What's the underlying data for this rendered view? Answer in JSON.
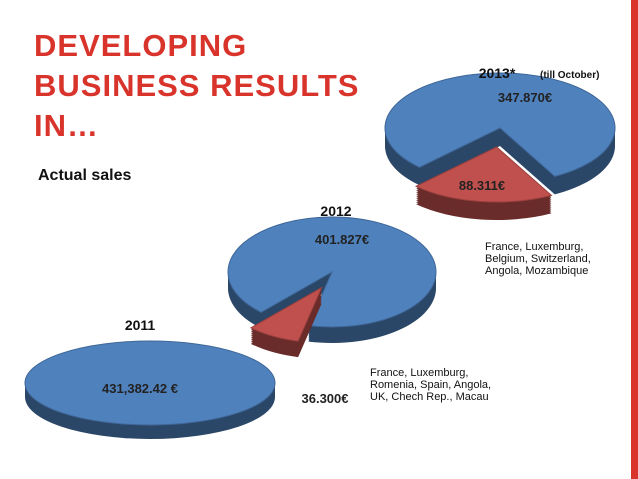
{
  "slide": {
    "title_lines": [
      "DEVELOPING",
      "BUSINESS RESULTS",
      "IN…"
    ],
    "subtitle": "Actual sales"
  },
  "chart_data": [
    {
      "type": "pie",
      "title": "2011",
      "values": [
        431382.42
      ],
      "value_labels": [
        "431,382.42 €"
      ],
      "colors": [
        "#4f81bd"
      ]
    },
    {
      "type": "pie",
      "title": "2012",
      "values": [
        401827,
        36300
      ],
      "value_labels": [
        "401.827€",
        "36.300€"
      ],
      "colors": [
        "#4f81bd",
        "#c0504d"
      ],
      "annotation": [
        "France, Luxemburg,",
        "Romenia, Spain, Angola,",
        "UK, Chech Rep., Macau"
      ]
    },
    {
      "type": "pie",
      "title": "2013*",
      "note": "(till October)",
      "values": [
        347870,
        88311
      ],
      "value_labels": [
        "347.870€",
        "88.311€"
      ],
      "colors": [
        "#4f81bd",
        "#c0504d"
      ],
      "annotation": [
        "France, Luxemburg,",
        "Belgium, Switzerland,",
        "Angola, Mozambique"
      ]
    }
  ]
}
